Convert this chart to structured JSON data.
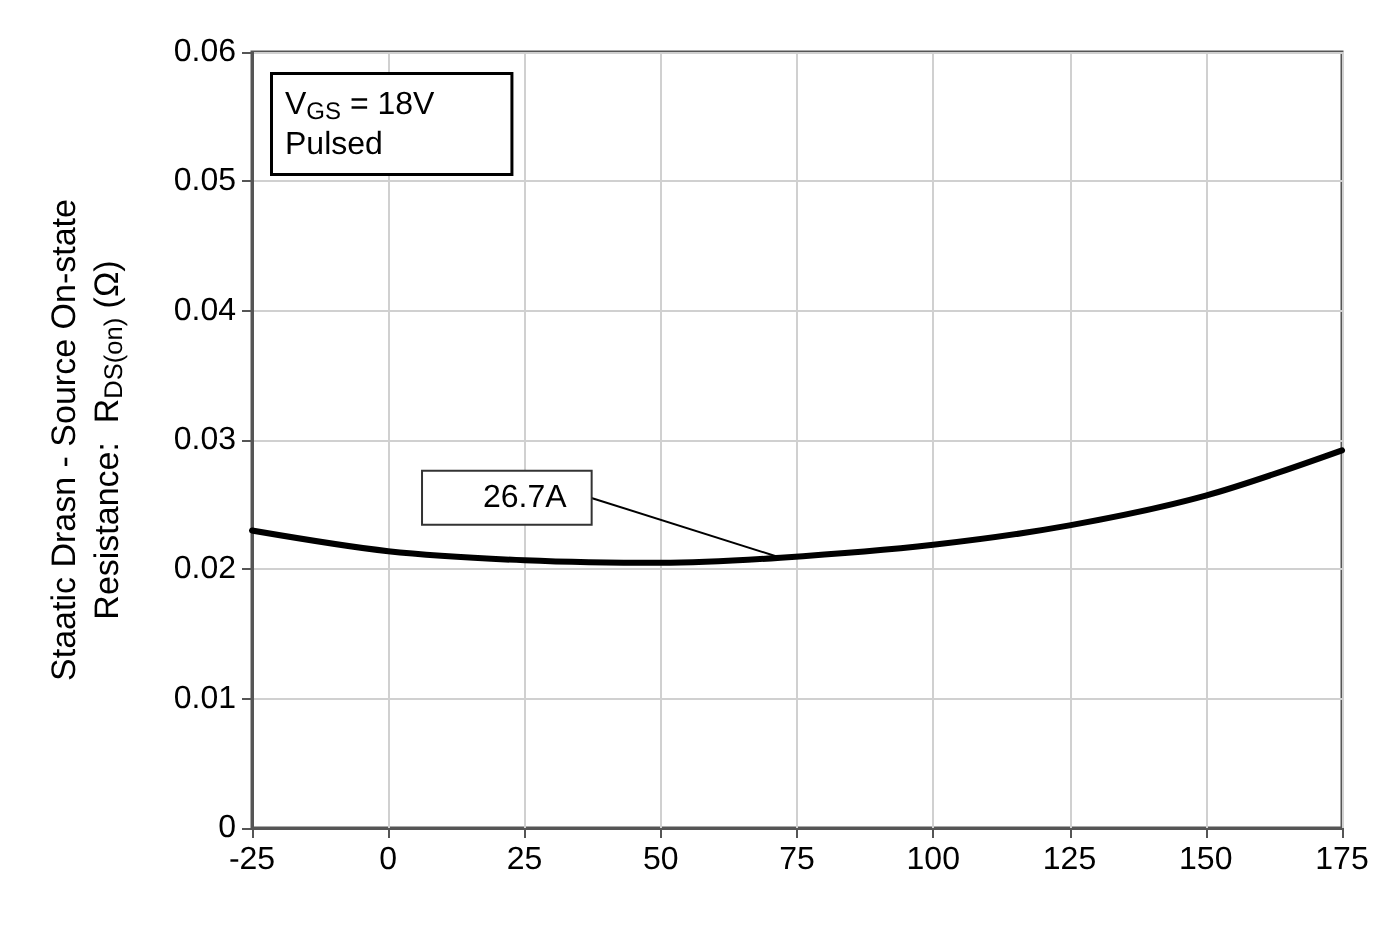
{
  "chart_data": {
    "type": "line",
    "ylabel": "Staatic Drasn - Source On-state\nResistance:  R$_{DS(on)}$ (Ω)",
    "x": [
      -25,
      0,
      25,
      50,
      72,
      100,
      125,
      150,
      175
    ],
    "series": [
      {
        "color": "#000000",
        "values": [
          0.023,
          0.0214,
          0.0207,
          0.0205,
          0.0209,
          0.0219,
          0.0234,
          0.0257,
          0.0292
        ]
      }
    ],
    "xlim": [
      -25,
      175
    ],
    "xticks": [
      -25,
      0,
      25,
      50,
      75,
      100,
      125,
      150,
      175
    ],
    "ylim": [
      0,
      0.06
    ],
    "yticks": [
      0,
      0.01,
      0.02,
      0.03,
      0.04,
      0.05,
      0.06
    ],
    "grid": true,
    "marker": "none",
    "line_style": "solid",
    "annotations": [
      "V$_{GS}$ = 18V\nPulsed",
      {
        "text": "26.7A",
        "x": 72,
        "y": 0.0209
      }
    ]
  }
}
